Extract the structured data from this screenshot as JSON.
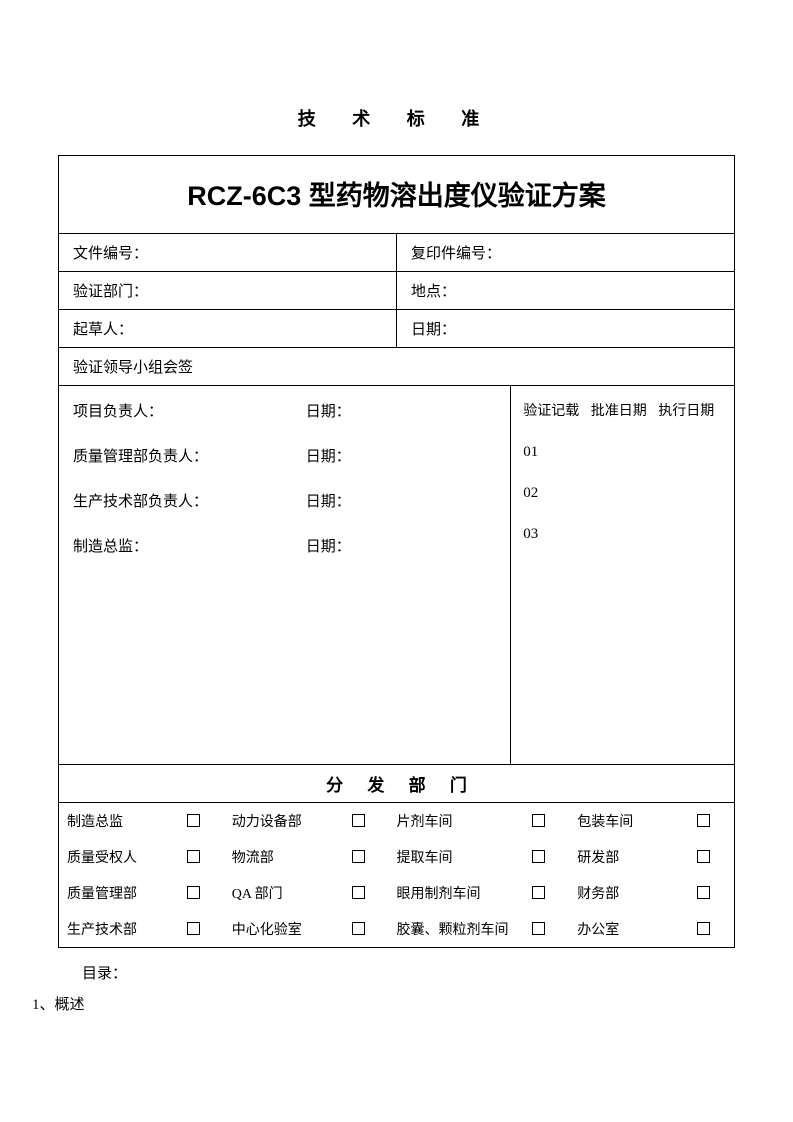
{
  "header_label": "技 术 标 准",
  "title": "RCZ-6C3 型药物溶出度仪验证方案",
  "meta": {
    "doc_no_label": "文件编号：",
    "copy_no_label": "复印件编号：",
    "verify_dept_label": "验证部门：",
    "location_label": "地点：",
    "drafter_label": "起草人：",
    "date_label": "日期：",
    "countersign_label": "验证领导小组会签"
  },
  "sign": {
    "rows": [
      {
        "role": "项目负责人：",
        "date": "日期："
      },
      {
        "role": "质量管理部负责人：",
        "date": "日期："
      },
      {
        "role": "生产技术部负责人：",
        "date": "日期："
      },
      {
        "role": "制造总监：",
        "date": "日期："
      }
    ],
    "record": {
      "h1": "验证记载",
      "h2": "批准日期",
      "h3": "执行日期",
      "lines": [
        "01",
        "02",
        "03"
      ]
    }
  },
  "dist": {
    "title": "分 发 部 门",
    "rows": [
      [
        "制造总监",
        "动力设备部",
        "片剂车间",
        "包装车间"
      ],
      [
        "质量受权人",
        "物流部",
        "提取车间",
        "研发部"
      ],
      [
        "质量管理部",
        "QA 部门",
        "眼用制剂车间",
        "财务部"
      ],
      [
        "生产技术部",
        "中心化验室",
        "胶囊、颗粒剂车间",
        "办公室"
      ]
    ]
  },
  "footer": {
    "line1": "目录：",
    "line2": "1、概述"
  },
  "colors": {
    "text": "#000000",
    "background": "#ffffff",
    "border": "#000000"
  }
}
